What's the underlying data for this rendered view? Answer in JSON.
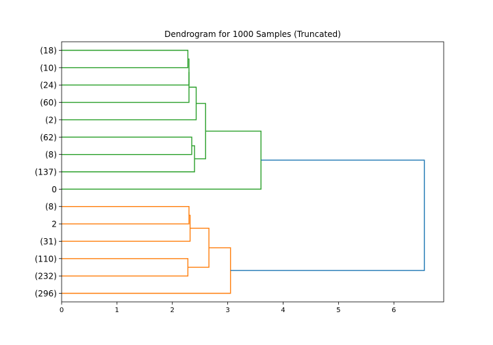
{
  "chart_data": {
    "type": "dendrogram",
    "title": "Dendrogram for 1000 Samples (Truncated)",
    "xlabel": "",
    "ylabel": "",
    "orientation": "horizontal",
    "xlim": [
      0,
      6.9
    ],
    "x_ticks": [
      0,
      1,
      2,
      3,
      4,
      5,
      6
    ],
    "grid": false,
    "leaf_labels": [
      "(18)",
      "(10)",
      "(24)",
      "(60)",
      "(2)",
      "(62)",
      "(8)",
      "(137)",
      "0",
      "(8)",
      "2",
      "(31)",
      "(110)",
      "(232)",
      "(296)"
    ],
    "colors": {
      "cluster_green": "#2ca02c",
      "cluster_orange": "#ff7f0e",
      "root_blue": "#1f77b4"
    },
    "merges": [
      {
        "left": "L0",
        "right": "L1",
        "height": 2.28,
        "color": "green",
        "id": "A"
      },
      {
        "left": "A",
        "right": "L2",
        "height": 2.3,
        "color": "green",
        "id": "B"
      },
      {
        "left": "B",
        "right": "L3",
        "height": 2.3,
        "color": "green",
        "id": "C"
      },
      {
        "left": "C",
        "right": "L4",
        "height": 2.43,
        "color": "green",
        "id": "D"
      },
      {
        "left": "L5",
        "right": "L6",
        "height": 2.35,
        "color": "green",
        "id": "E"
      },
      {
        "left": "E",
        "right": "L7",
        "height": 2.4,
        "color": "green",
        "id": "F"
      },
      {
        "left": "D",
        "right": "F",
        "height": 2.6,
        "color": "green",
        "id": "G"
      },
      {
        "left": "G",
        "right": "L8",
        "height": 3.6,
        "color": "green",
        "id": "H"
      },
      {
        "left": "L9",
        "right": "L10",
        "height": 2.3,
        "color": "orange",
        "id": "I"
      },
      {
        "left": "I",
        "right": "L11",
        "height": 2.32,
        "color": "orange",
        "id": "J"
      },
      {
        "left": "L12",
        "right": "L13",
        "height": 2.28,
        "color": "orange",
        "id": "K"
      },
      {
        "left": "J",
        "right": "K",
        "height": 2.66,
        "color": "orange",
        "id": "M"
      },
      {
        "left": "M",
        "right": "L14",
        "height": 3.05,
        "color": "orange",
        "id": "N"
      },
      {
        "left": "H",
        "right": "N",
        "height": 6.55,
        "color": "blue",
        "id": "R"
      }
    ]
  }
}
